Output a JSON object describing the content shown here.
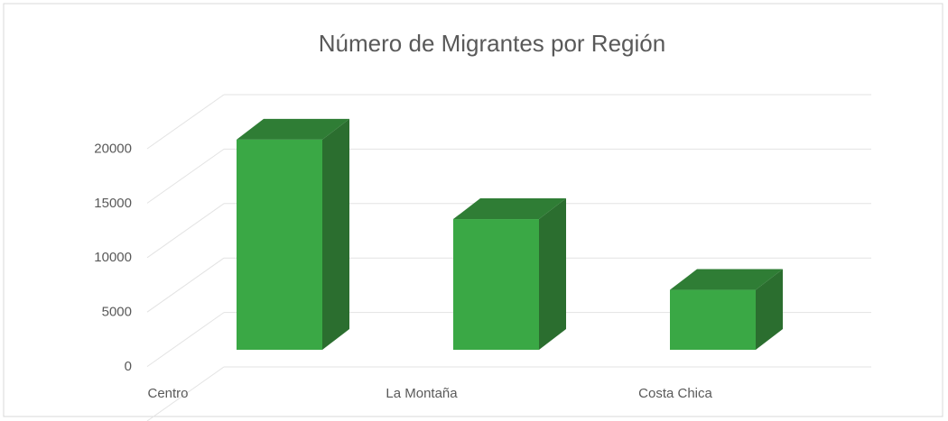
{
  "chart_data": {
    "type": "bar3d",
    "title": "Número de Migrantes por Región",
    "categories": [
      "Centro",
      "La Montaña",
      "Costa Chica"
    ],
    "values": [
      19300,
      12000,
      5500
    ],
    "color": "#3aa845",
    "ylim": [
      0,
      25000
    ],
    "yticks": [
      0,
      5000,
      10000,
      15000,
      20000
    ],
    "grid": true
  }
}
